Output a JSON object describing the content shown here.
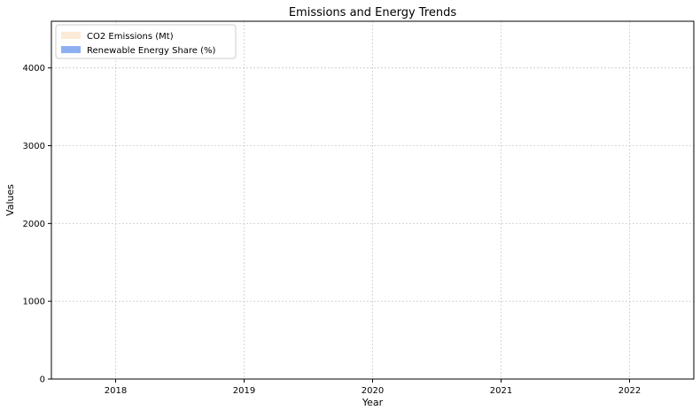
{
  "chart_data": {
    "type": "area",
    "title": "Emissions and Energy Trends",
    "xlabel": "Year",
    "ylabel": "Values",
    "categories": [
      "2018",
      "2019",
      "2020",
      "2021",
      "2022"
    ],
    "series": [
      {
        "name": "CO2 Emissions (Mt)",
        "values": [
          0,
          0,
          0,
          0,
          0
        ],
        "color": "#fdebd7"
      },
      {
        "name": "Renewable Energy Share (%)",
        "values": [
          0,
          0,
          0,
          0,
          0
        ],
        "color": "#8fb0f0"
      }
    ],
    "xlim": [
      2017.5,
      2022.5
    ],
    "ylim": [
      0,
      4600
    ],
    "yticks": [
      0,
      1000,
      2000,
      3000,
      4000
    ],
    "grid": true,
    "grid_style": "dotted",
    "legend_position": "top-left"
  }
}
